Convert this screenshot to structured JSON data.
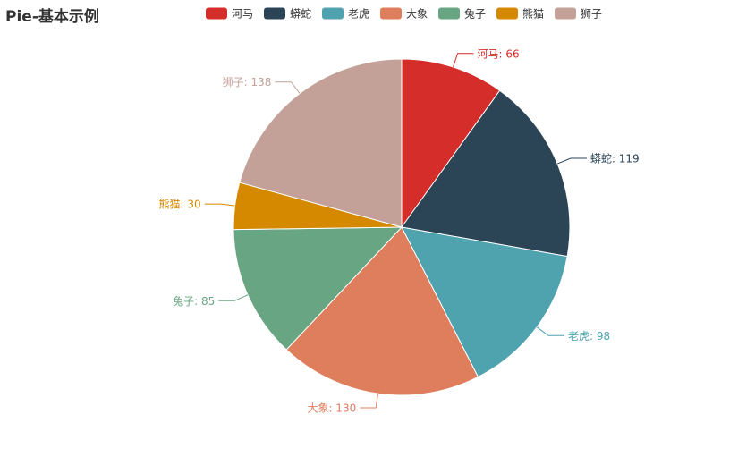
{
  "chart_data": {
    "type": "pie",
    "title": "Pie-基本示例",
    "legend_position": "top",
    "slices": [
      {
        "name": "河马",
        "value": 66,
        "color": "#d42d2a"
      },
      {
        "name": "蟒蛇",
        "value": 119,
        "color": "#2b4557"
      },
      {
        "name": "老虎",
        "value": 98,
        "color": "#4fa3ae"
      },
      {
        "name": "大象",
        "value": 130,
        "color": "#df7e5d"
      },
      {
        "name": "兔子",
        "value": 85,
        "color": "#68a582"
      },
      {
        "name": "熊猫",
        "value": 30,
        "color": "#d48900"
      },
      {
        "name": "狮子",
        "value": 138,
        "color": "#c3a198"
      }
    ]
  }
}
